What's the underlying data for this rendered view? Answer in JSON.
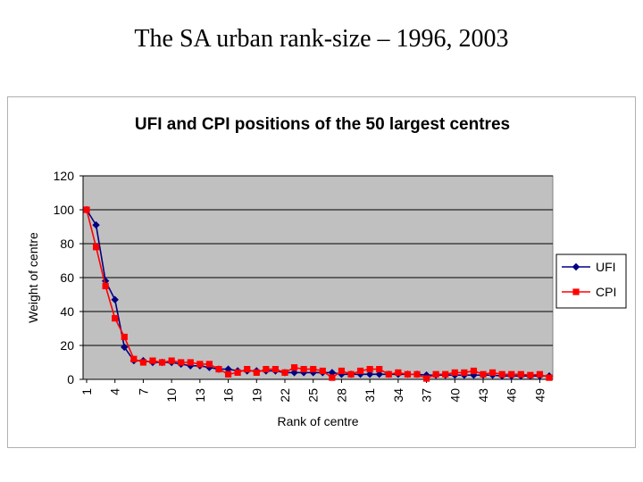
{
  "slide": {
    "title": "The SA urban rank-size – 1996, 2003"
  },
  "colors": {
    "plot_bg": "#c0c0c0",
    "ufi": "#000080",
    "cpi": "#ff0000",
    "grid": "#000000"
  },
  "chart_data": {
    "type": "line",
    "title": "UFI and CPI positions of the 50 largest centres",
    "xlabel": "Rank of centre",
    "ylabel": "Weight of centre",
    "ylim": [
      0,
      120
    ],
    "yticks": [
      0,
      20,
      40,
      60,
      80,
      100,
      120
    ],
    "xticks": [
      1,
      4,
      7,
      10,
      13,
      16,
      19,
      22,
      25,
      28,
      31,
      34,
      37,
      40,
      43,
      46,
      49
    ],
    "grid": "horizontal",
    "legend": "right",
    "x": [
      1,
      2,
      3,
      4,
      5,
      6,
      7,
      8,
      9,
      10,
      11,
      12,
      13,
      14,
      15,
      16,
      17,
      18,
      19,
      20,
      21,
      22,
      23,
      24,
      25,
      26,
      27,
      28,
      29,
      30,
      31,
      32,
      33,
      34,
      35,
      36,
      37,
      38,
      39,
      40,
      41,
      42,
      43,
      44,
      45,
      46,
      47,
      48,
      49,
      50
    ],
    "series": [
      {
        "name": "UFI",
        "marker": "diamond",
        "values": [
          100,
          91,
          58,
          47,
          19,
          11,
          11,
          10,
          10,
          10,
          9,
          8,
          8,
          7,
          6,
          6,
          5,
          5,
          5,
          5,
          5,
          4,
          4,
          4,
          4,
          4,
          4,
          3,
          3,
          3,
          3,
          3,
          3,
          3,
          3,
          3,
          2.5,
          2.5,
          2.5,
          2.5,
          2.5,
          2.5,
          2.5,
          2.5,
          2,
          2,
          2,
          2,
          2,
          2
        ]
      },
      {
        "name": "CPI",
        "marker": "square",
        "values": [
          100,
          78,
          55,
          36,
          25,
          12,
          10,
          11,
          10,
          11,
          10,
          10,
          9,
          9,
          6,
          3,
          4,
          6,
          4,
          6,
          6,
          4,
          7,
          6,
          6,
          5,
          1,
          5,
          3,
          5,
          6,
          6,
          3,
          4,
          3,
          3,
          0.5,
          3,
          3,
          4,
          4,
          5,
          3,
          4,
          3,
          3,
          3,
          2.5,
          3,
          1
        ]
      }
    ]
  }
}
